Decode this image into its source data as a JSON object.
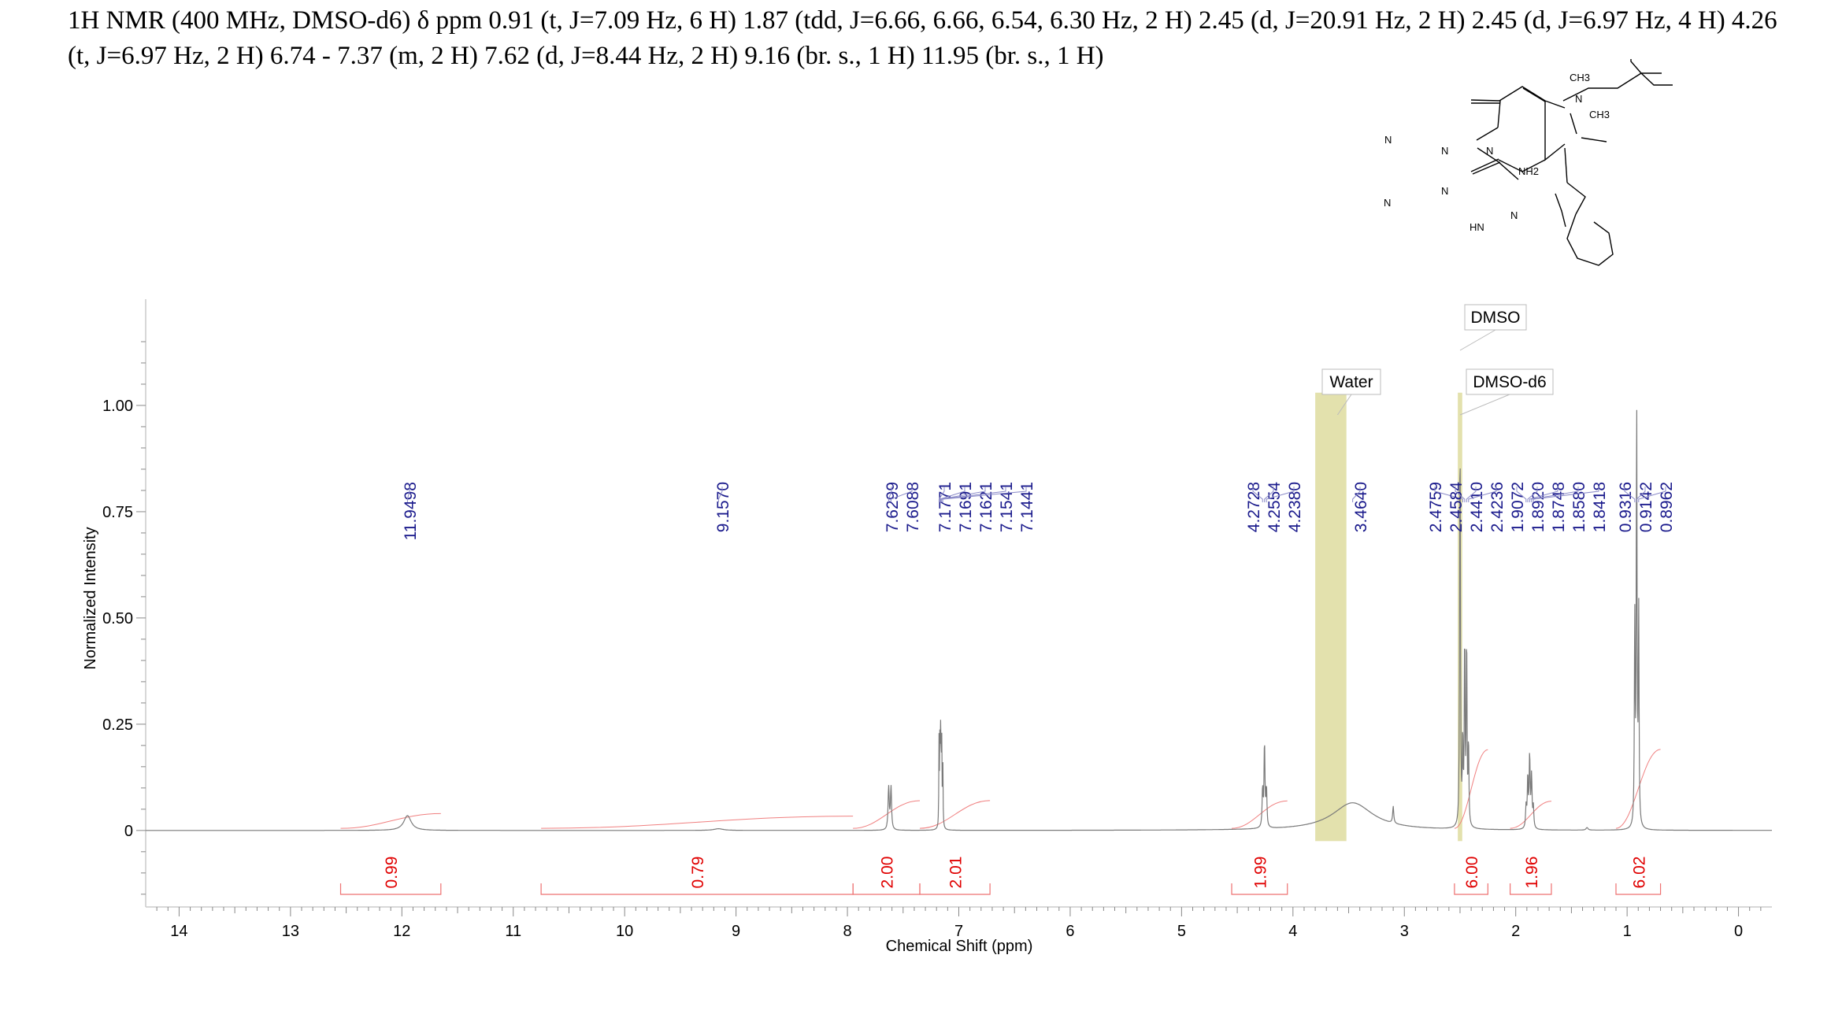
{
  "header": {
    "text": "1H NMR (400 MHz, DMSO-d6) δ ppm 0.91 (t, J=7.09 Hz, 6 H) 1.87 (tdd, J=6.66, 6.66, 6.54, 6.30 Hz, 2 H) 2.45 (d, J=20.91 Hz, 2 H) 2.45 (d, J=6.97 Hz, 4 H) 4.26 (t, J=6.97 Hz, 2 H) 6.74 - 7.37 (m, 2 H) 7.62 (d, J=8.44 Hz, 2 H) 9.16 (br. s., 1 H) 11.95 (br. s., 1 H)"
  },
  "molecule": {
    "atoms": [
      "CH3",
      "N",
      "CH3",
      "N",
      "N",
      "N",
      "NH2",
      "N",
      "N",
      "N",
      "HN",
      "N"
    ]
  },
  "chart_data": {
    "type": "line",
    "title": "",
    "xlabel": "Chemical Shift (ppm)",
    "ylabel": "Normalized Intensity",
    "xlim": [
      14.3,
      -0.3
    ],
    "ylim": [
      -0.18,
      1.25
    ],
    "x_ticks": [
      "14",
      "13",
      "12",
      "11",
      "10",
      "9",
      "8",
      "7",
      "6",
      "5",
      "4",
      "3",
      "2",
      "1",
      "0"
    ],
    "y_ticks": [
      "0",
      "0.25",
      "0.50",
      "0.75",
      "1.00"
    ],
    "grid": false,
    "peak_labels": [
      "11.9498",
      "9.1570",
      "7.6299",
      "7.6088",
      "7.1771",
      "7.1691",
      "7.1621",
      "7.1541",
      "7.1441",
      "4.2728",
      "4.2554",
      "4.2380",
      "3.4640",
      "2.4759",
      "2.4584",
      "2.4410",
      "2.4236",
      "1.9072",
      "1.8920",
      "1.8748",
      "1.8580",
      "1.8418",
      "0.9316",
      "0.9142",
      "0.8962"
    ],
    "integrals": [
      {
        "label": "0.99",
        "from": 12.55,
        "to": 11.65
      },
      {
        "label": "0.79",
        "from": 10.75,
        "to": 7.95
      },
      {
        "label": "2.00",
        "from": 7.95,
        "to": 7.35
      },
      {
        "label": "2.01",
        "from": 7.35,
        "to": 6.72
      },
      {
        "label": "1.99",
        "from": 4.55,
        "to": 4.05
      },
      {
        "label": "6.00",
        "from": 2.55,
        "to": 2.25
      },
      {
        "label": "1.96",
        "from": 2.05,
        "to": 1.68
      },
      {
        "label": "6.02",
        "from": 1.1,
        "to": 0.7
      }
    ],
    "annotations": [
      {
        "label": "Water",
        "shift": 3.6
      },
      {
        "label": "DMSO",
        "shift": 2.5
      },
      {
        "label": "DMSO-d6",
        "shift": 2.5
      }
    ],
    "excluded_regions": [
      {
        "from": 3.8,
        "to": 3.52
      },
      {
        "from": 2.52,
        "to": 2.48
      }
    ],
    "peaks": [
      {
        "shift": 11.95,
        "height": 0.035,
        "width": 0.04
      },
      {
        "shift": 9.157,
        "height": 0.004,
        "width": 0.05
      },
      {
        "shift": 7.6299,
        "height": 0.1,
        "width": 0.006
      },
      {
        "shift": 7.6088,
        "height": 0.1,
        "width": 0.006
      },
      {
        "shift": 7.1771,
        "height": 0.2,
        "width": 0.0025
      },
      {
        "shift": 7.1691,
        "height": 0.23,
        "width": 0.0025
      },
      {
        "shift": 7.1621,
        "height": 0.25,
        "width": 0.0025
      },
      {
        "shift": 7.1541,
        "height": 0.23,
        "width": 0.0025
      },
      {
        "shift": 7.1441,
        "height": 0.2,
        "width": 0.0025
      },
      {
        "shift": 4.2728,
        "height": 0.09,
        "width": 0.005
      },
      {
        "shift": 4.2554,
        "height": 0.2,
        "width": 0.005
      },
      {
        "shift": 4.238,
        "height": 0.09,
        "width": 0.005
      },
      {
        "shift": 3.464,
        "height": 0.065,
        "width": 0.22
      },
      {
        "shift": 3.1,
        "height": 0.04,
        "width": 0.006
      },
      {
        "shift": 2.4759,
        "height": 0.2,
        "width": 0.004
      },
      {
        "shift": 2.4584,
        "height": 0.45,
        "width": 0.004
      },
      {
        "shift": 2.441,
        "height": 0.45,
        "width": 0.004
      },
      {
        "shift": 2.4236,
        "height": 0.2,
        "width": 0.004
      },
      {
        "shift": 2.5,
        "height": 0.98,
        "width": 0.004
      },
      {
        "shift": 1.9072,
        "height": 0.05,
        "width": 0.005
      },
      {
        "shift": 1.892,
        "height": 0.12,
        "width": 0.005
      },
      {
        "shift": 1.8748,
        "height": 0.17,
        "width": 0.005
      },
      {
        "shift": 1.858,
        "height": 0.12,
        "width": 0.005
      },
      {
        "shift": 1.8418,
        "height": 0.05,
        "width": 0.005
      },
      {
        "shift": 1.36,
        "height": 0.006,
        "width": 0.01
      },
      {
        "shift": 0.9316,
        "height": 0.5,
        "width": 0.004
      },
      {
        "shift": 0.9142,
        "height": 1.0,
        "width": 0.004
      },
      {
        "shift": 0.8962,
        "height": 0.5,
        "width": 0.004
      }
    ]
  }
}
